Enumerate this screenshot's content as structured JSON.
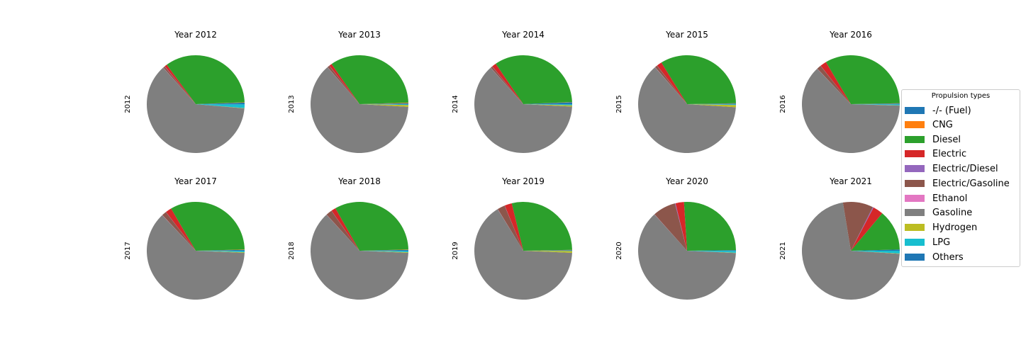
{
  "figure": {
    "legend_title": "Propulsion types"
  },
  "chart_data": [
    {
      "type": "pie",
      "title": "Year 2012",
      "ylabel": "2012",
      "labels": [
        "-/- (Fuel)",
        "CNG",
        "Diesel",
        "Electric",
        "Electric/Diesel",
        "Electric/Gasoline",
        "Ethanol",
        "Gasoline",
        "Hydrogen",
        "LPG",
        "Others"
      ],
      "values": [
        0.5,
        0.1,
        34.5,
        0.8,
        0.05,
        0.6,
        0.05,
        62.0,
        0.1,
        1.2,
        0.1
      ]
    },
    {
      "type": "pie",
      "title": "Year 2013",
      "ylabel": "2013",
      "labels": [
        "-/- (Fuel)",
        "CNG",
        "Diesel",
        "Electric",
        "Electric/Diesel",
        "Electric/Gasoline",
        "Ethanol",
        "Gasoline",
        "Hydrogen",
        "LPG",
        "Others"
      ],
      "values": [
        0.3,
        0.2,
        34.2,
        0.9,
        0.05,
        0.7,
        0.05,
        62.8,
        0.6,
        0.2,
        0.1
      ]
    },
    {
      "type": "pie",
      "title": "Year 2014",
      "ylabel": "2014",
      "labels": [
        "-/- (Fuel)",
        "CNG",
        "Diesel",
        "Electric",
        "Electric/Diesel",
        "Electric/Gasoline",
        "Ethanol",
        "Gasoline",
        "Hydrogen",
        "LPG",
        "Others"
      ],
      "values": [
        0.6,
        0.1,
        33.8,
        1.4,
        0.05,
        0.6,
        0.05,
        62.5,
        0.4,
        0.3,
        0.1
      ]
    },
    {
      "type": "pie",
      "title": "Year 2015",
      "ylabel": "2015",
      "labels": [
        "-/- (Fuel)",
        "CNG",
        "Diesel",
        "Electric",
        "Electric/Diesel",
        "Electric/Gasoline",
        "Ethanol",
        "Gasoline",
        "Hydrogen",
        "LPG",
        "Others"
      ],
      "values": [
        0.2,
        0.1,
        33.5,
        1.7,
        0.05,
        0.8,
        0.05,
        62.6,
        0.7,
        0.2,
        0.1
      ]
    },
    {
      "type": "pie",
      "title": "Year 2016",
      "ylabel": "2016",
      "labels": [
        "-/- (Fuel)",
        "CNG",
        "Diesel",
        "Electric",
        "Electric/Diesel",
        "Electric/Gasoline",
        "Ethanol",
        "Gasoline",
        "Hydrogen",
        "LPG",
        "Others"
      ],
      "values": [
        0.2,
        0.1,
        33.2,
        2.1,
        0.05,
        1.4,
        0.05,
        62.4,
        0.1,
        0.3,
        0.1
      ]
    },
    {
      "type": "pie",
      "title": "Year 2017",
      "ylabel": "2017",
      "labels": [
        "-/- (Fuel)",
        "CNG",
        "Diesel",
        "Electric",
        "Electric/Diesel",
        "Electric/Gasoline",
        "Ethanol",
        "Gasoline",
        "Hydrogen",
        "LPG",
        "Others"
      ],
      "values": [
        0.3,
        0.1,
        33.0,
        2.0,
        0.05,
        1.5,
        0.05,
        62.3,
        0.2,
        0.4,
        0.1
      ]
    },
    {
      "type": "pie",
      "title": "Year 2018",
      "ylabel": "2018",
      "labels": [
        "-/- (Fuel)",
        "CNG",
        "Diesel",
        "Electric",
        "Electric/Diesel",
        "Electric/Gasoline",
        "Ethanol",
        "Gasoline",
        "Hydrogen",
        "LPG",
        "Others"
      ],
      "values": [
        0.3,
        0.1,
        32.8,
        1.5,
        0.05,
        2.0,
        0.05,
        62.5,
        0.2,
        0.4,
        0.1
      ]
    },
    {
      "type": "pie",
      "title": "Year 2019",
      "ylabel": "2019",
      "labels": [
        "-/- (Fuel)",
        "CNG",
        "Diesel",
        "Electric",
        "Electric/Diesel",
        "Electric/Gasoline",
        "Ethanol",
        "Gasoline",
        "Hydrogen",
        "LPG",
        "Others"
      ],
      "values": [
        0.2,
        0.1,
        28.5,
        2.4,
        0.05,
        2.5,
        0.05,
        65.5,
        0.6,
        0.1,
        0.0
      ]
    },
    {
      "type": "pie",
      "title": "Year 2020",
      "ylabel": "2020",
      "labels": [
        "-/- (Fuel)",
        "CNG",
        "Diesel",
        "Electric",
        "Electric/Diesel",
        "Electric/Gasoline",
        "Ethanol",
        "Gasoline",
        "Hydrogen",
        "LPG",
        "Others"
      ],
      "values": [
        0.2,
        0.0,
        25.8,
        2.8,
        0.2,
        7.6,
        0.05,
        62.6,
        0.1,
        0.6,
        0.05
      ]
    },
    {
      "type": "pie",
      "title": "Year 2021",
      "ylabel": "2021",
      "labels": [
        "-/- (Fuel)",
        "CNG",
        "Diesel",
        "Electric",
        "Electric/Diesel",
        "Electric/Gasoline",
        "Ethanol",
        "Gasoline",
        "Hydrogen",
        "LPG",
        "Others"
      ],
      "values": [
        0.4,
        0.0,
        13.5,
        3.4,
        0.3,
        10.0,
        0.0,
        71.4,
        0.1,
        0.9,
        0.0
      ]
    }
  ],
  "series_colors": [
    "#1f77b4",
    "#ff7f0e",
    "#2ca02c",
    "#d62728",
    "#9467bd",
    "#8c564b",
    "#e377c2",
    "#7f7f7f",
    "#bcbd22",
    "#17becf",
    "#1f77b4"
  ],
  "legend": {
    "items": [
      {
        "label": "-/- (Fuel)",
        "color": "#1f77b4"
      },
      {
        "label": "CNG",
        "color": "#ff7f0e"
      },
      {
        "label": "Diesel",
        "color": "#2ca02c"
      },
      {
        "label": "Electric",
        "color": "#d62728"
      },
      {
        "label": "Electric/Diesel",
        "color": "#9467bd"
      },
      {
        "label": "Electric/Gasoline",
        "color": "#8c564b"
      },
      {
        "label": "Ethanol",
        "color": "#e377c2"
      },
      {
        "label": "Gasoline",
        "color": "#7f7f7f"
      },
      {
        "label": "Hydrogen",
        "color": "#bcbd22"
      },
      {
        "label": "LPG",
        "color": "#17becf"
      },
      {
        "label": "Others",
        "color": "#1f77b4"
      }
    ]
  }
}
